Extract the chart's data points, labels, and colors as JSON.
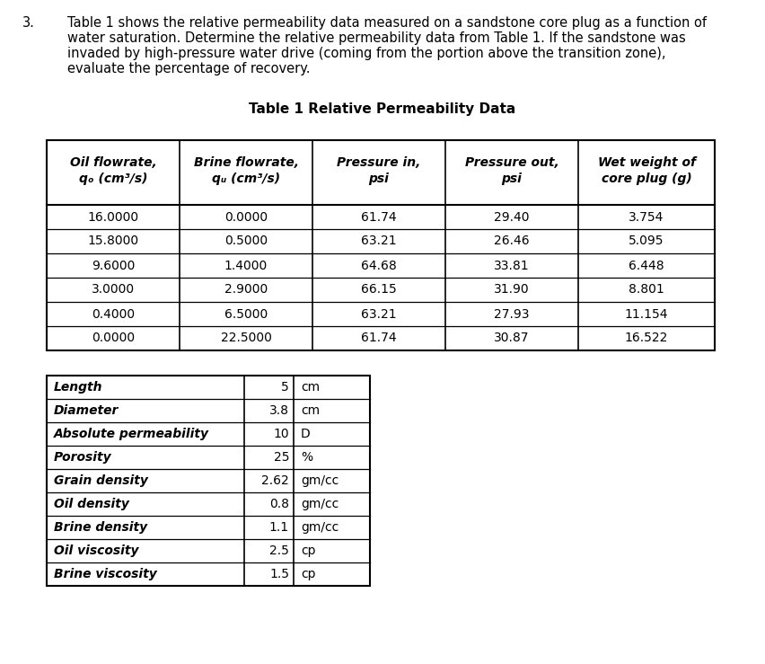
{
  "question_number": "3.",
  "question_lines": [
    "Table 1 shows the relative permeability data measured on a sandstone core plug as a function of",
    "water saturation. Determine the relative permeability data from Table 1. If the sandstone was",
    "invaded by high-pressure water drive (coming from the portion above the transition zone),",
    "evaluate the percentage of recovery."
  ],
  "table_title": "Table 1 Relative Permeability Data",
  "table1_header_line1": [
    "Oil flowrate,",
    "Brine flowrate,",
    "Pressure in,",
    "Pressure out,",
    "Wet weight of"
  ],
  "table1_header_line2": [
    "qₒ (cm³/s)",
    "qᵤ (cm³/s)",
    "psi",
    "psi",
    "core plug (g)"
  ],
  "table1_data": [
    [
      "16.0000",
      "0.0000",
      "61.74",
      "29.40",
      "3.754"
    ],
    [
      "15.8000",
      "0.5000",
      "63.21",
      "26.46",
      "5.095"
    ],
    [
      "9.6000",
      "1.4000",
      "64.68",
      "33.81",
      "6.448"
    ],
    [
      "3.0000",
      "2.9000",
      "66.15",
      "31.90",
      "8.801"
    ],
    [
      "0.4000",
      "6.5000",
      "63.21",
      "27.93",
      "11.154"
    ],
    [
      "0.0000",
      "22.5000",
      "61.74",
      "30.87",
      "16.522"
    ]
  ],
  "table2_labels": [
    "Length",
    "Diameter",
    "Absolute permeability",
    "Porosity",
    "Grain density",
    "Oil density",
    "Brine density",
    "Oil viscosity",
    "Brine viscosity"
  ],
  "table2_values": [
    "5",
    "3.8",
    "10",
    "25",
    "2.62",
    "0.8",
    "1.1",
    "2.5",
    "1.5"
  ],
  "table2_units": [
    "cm",
    "cm",
    "D",
    "%",
    "gm/cc",
    "gm/cc",
    "gm/cc",
    "cp",
    "cp"
  ],
  "bg_color": "#ffffff",
  "border_color": "#000000",
  "text_color": "#000000",
  "line_color": "#555555"
}
